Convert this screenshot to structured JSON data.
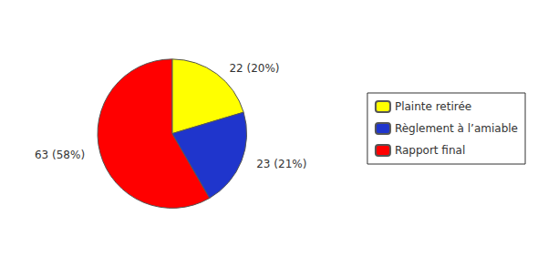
{
  "chart_data": {
    "type": "pie",
    "categories": [
      "Plainte retirée",
      "Règlement à l’amiable",
      "Rapport final"
    ],
    "values": [
      22,
      23,
      63
    ],
    "value_labels": [
      "22 (20%)",
      "23 (21%)",
      "63 (58%)"
    ],
    "colors": [
      "#FFFF00",
      "#1F35CC",
      "#FF0000"
    ],
    "data_labels": true,
    "legend": "right"
  }
}
